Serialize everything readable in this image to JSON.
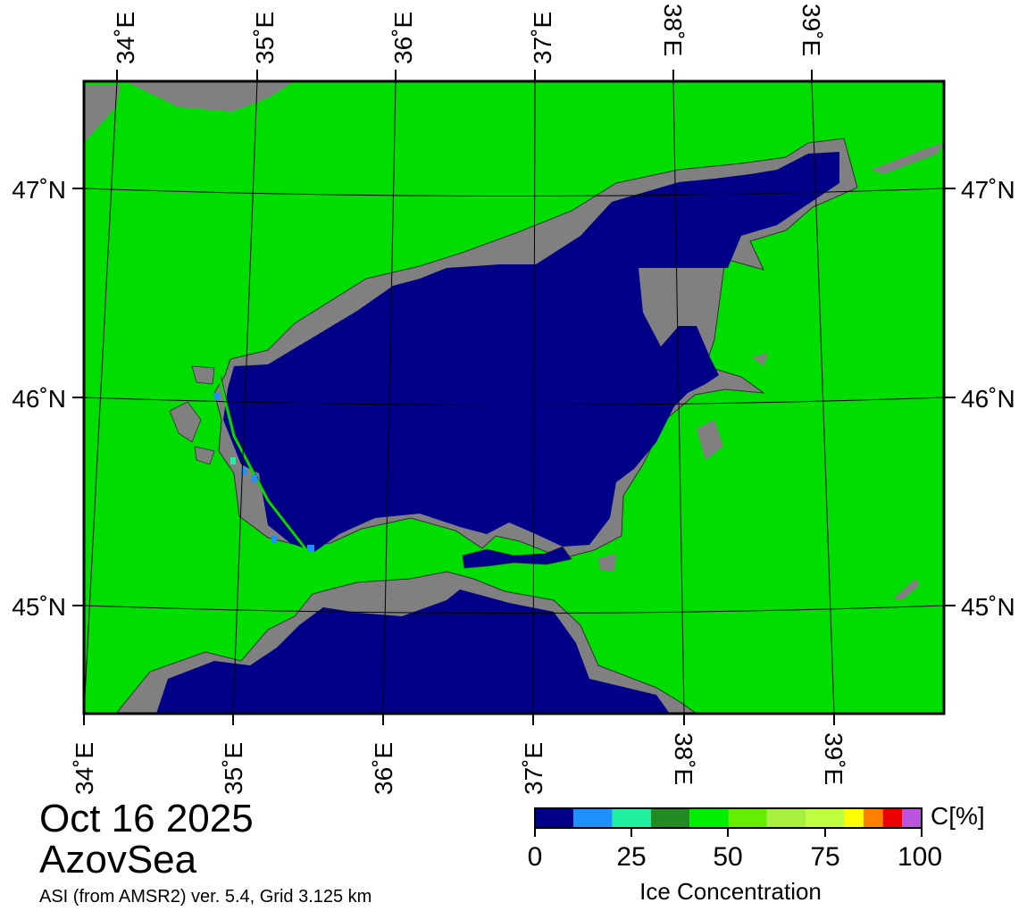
{
  "map": {
    "date": "Oct 16 2025",
    "region": "AzovSea",
    "product": "ASI (from AMSR2) ver. 5.4,  Grid 3.125 km",
    "colors": {
      "land": "#00dd00",
      "coast": "#808080",
      "water": "#000088",
      "frame": "#000000"
    },
    "top_lon_labels": [
      "34˚E",
      "35˚E",
      "36˚E",
      "37˚E",
      "38˚E",
      "39˚E"
    ],
    "bottom_lon_labels": [
      "34˚E",
      "35˚E",
      "36˚E",
      "37˚E",
      "38˚E",
      "39˚E"
    ],
    "left_lat_labels": [
      "47˚N",
      "46˚N",
      "45˚N"
    ],
    "right_lat_labels": [
      "47˚N",
      "46˚N",
      "45˚N"
    ]
  },
  "colorbar": {
    "title": "Ice Concentration",
    "unit": "C[%]",
    "tick_labels": [
      "0",
      "25",
      "50",
      "75",
      "100"
    ],
    "colors": [
      "#000088",
      "#1e90ff",
      "#20f0a0",
      "#228b22",
      "#00ee00",
      "#66ee00",
      "#a8f040",
      "#c0ff40",
      "#ffff00",
      "#ff8000",
      "#ee0000",
      "#bb55dd",
      "#7700bb"
    ]
  }
}
